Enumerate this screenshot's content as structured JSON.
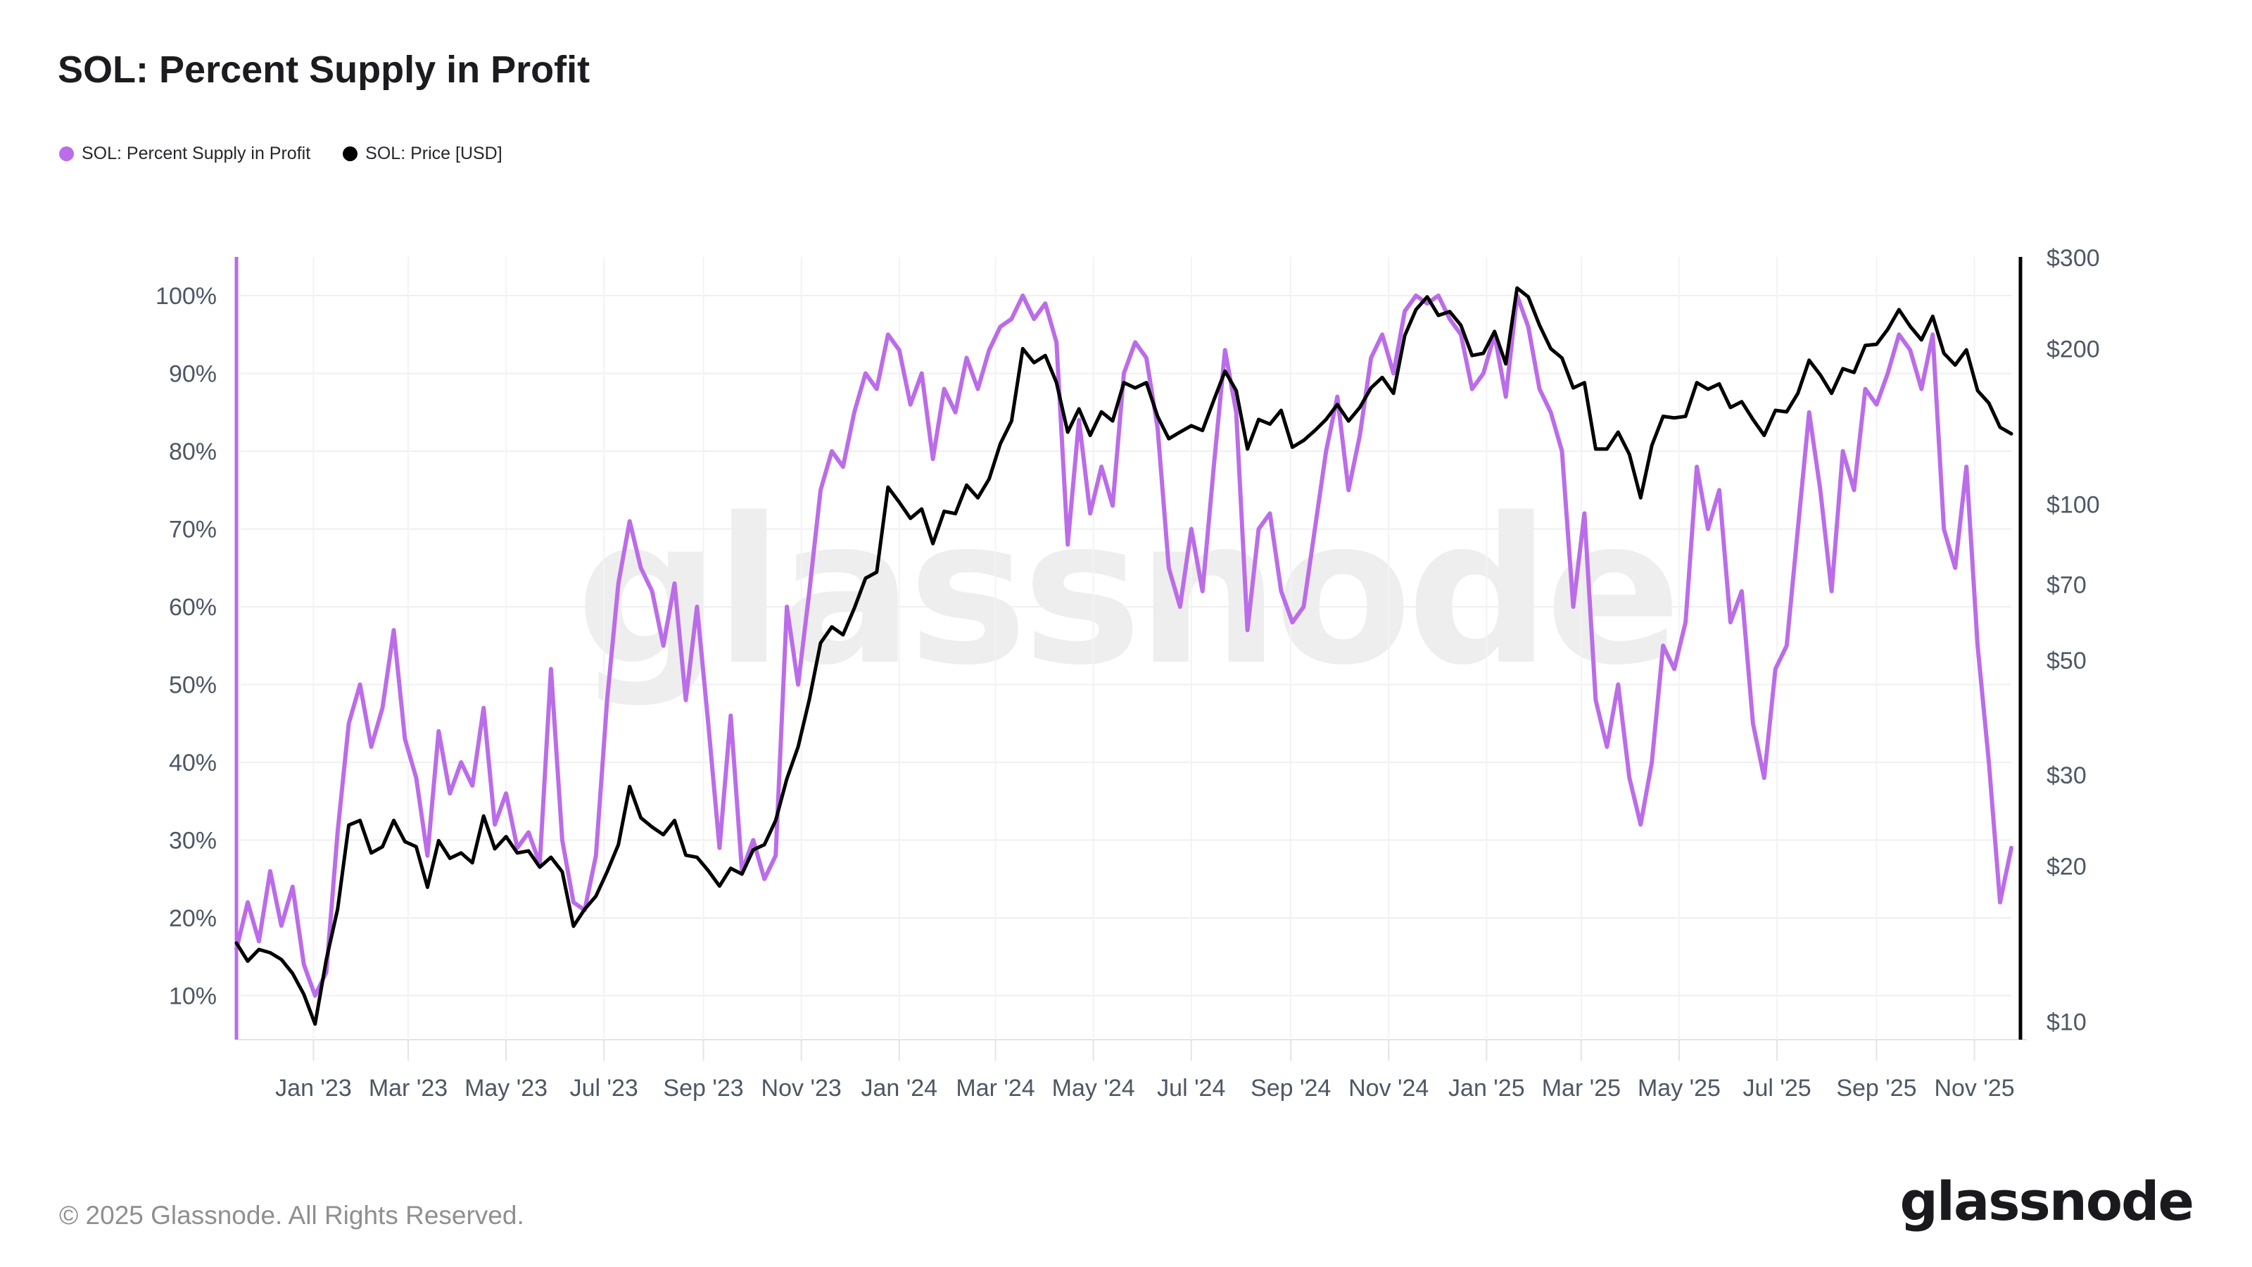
{
  "header": {
    "title": "SOL: Percent Supply in Profit"
  },
  "legend": [
    {
      "label": "SOL: Percent Supply in Profit",
      "color": "#bb6ce9",
      "marker": "circle-icon"
    },
    {
      "label": "SOL: Price [USD]",
      "color": "#000000",
      "marker": "circle-icon"
    }
  ],
  "watermark": "glassnode",
  "footer": {
    "copyright": "© 2025 Glassnode. All Rights Reserved.",
    "brand": "glassnode"
  },
  "chart_data": {
    "type": "line",
    "title": "SOL: Percent Supply in Profit",
    "grid": true,
    "legend_position": "top-left",
    "x_tick_labels": [
      "Jan '23",
      "Mar '23",
      "May '23",
      "Jul '23",
      "Sep '23",
      "Nov '23",
      "Jan '24",
      "Mar '24",
      "May '24",
      "Jul '24",
      "Sep '24",
      "Nov '24",
      "Jan '25",
      "Mar '25",
      "May '25",
      "Jul '25",
      "Sep '25",
      "Nov '25"
    ],
    "x_tick_day_offsets": [
      48,
      107,
      168,
      229,
      291,
      352,
      413,
      473,
      534,
      595,
      657,
      718,
      779,
      838,
      899,
      960,
      1022,
      1083
    ],
    "x_total_days": 1106,
    "sample_interval_days": 7,
    "left_axis": {
      "unit": "%",
      "scale": "linear",
      "tick_values": [
        100,
        90,
        80,
        70,
        60,
        50,
        40,
        30,
        20,
        10
      ],
      "tick_labels": [
        "100%",
        "90%",
        "80%",
        "70%",
        "60%",
        "50%",
        "40%",
        "30%",
        "20%",
        "10%"
      ]
    },
    "right_axis": {
      "unit": "USD",
      "scale": "log",
      "tick_values": [
        300,
        200,
        100,
        70,
        50,
        30,
        20,
        10
      ],
      "tick_labels": [
        "$300",
        "$200",
        "$100",
        "$70",
        "$50",
        "$30",
        "$20",
        "$10"
      ]
    },
    "series": [
      {
        "name": "SOL: Percent Supply in Profit",
        "color": "#bb6ce9",
        "axis": "left",
        "values": [
          16,
          22,
          17,
          26,
          19,
          24,
          14,
          10,
          13,
          31,
          45,
          50,
          42,
          47,
          57,
          43,
          38,
          28,
          44,
          36,
          40,
          37,
          47,
          32,
          36,
          29,
          31,
          27,
          52,
          30,
          22,
          21,
          28,
          48,
          63,
          71,
          65,
          62,
          55,
          63,
          48,
          60,
          45,
          29,
          46,
          26,
          30,
          25,
          28,
          60,
          50,
          62,
          75,
          80,
          78,
          85,
          90,
          88,
          95,
          93,
          86,
          90,
          79,
          88,
          85,
          92,
          88,
          93,
          96,
          97,
          100,
          97,
          99,
          94,
          68,
          84,
          72,
          78,
          73,
          90,
          94,
          92,
          83,
          65,
          60,
          70,
          62,
          78,
          93,
          85,
          57,
          70,
          72,
          62,
          58,
          60,
          70,
          80,
          87,
          75,
          82,
          92,
          95,
          90,
          98,
          100,
          99,
          100,
          97,
          95,
          88,
          90,
          95,
          87,
          100,
          96,
          88,
          85,
          80,
          60,
          72,
          48,
          42,
          50,
          38,
          32,
          40,
          55,
          52,
          58,
          78,
          70,
          75,
          58,
          62,
          45,
          38,
          52,
          55,
          70,
          85,
          75,
          62,
          80,
          75,
          88,
          86,
          90,
          95,
          93,
          88,
          95,
          70,
          65,
          78,
          55,
          40,
          22,
          29
        ]
      },
      {
        "name": "SOL: Price [USD]",
        "color": "#000000",
        "axis": "right",
        "values": [
          14.2,
          13.1,
          13.8,
          13.6,
          13.2,
          12.4,
          11.3,
          9.9,
          13.2,
          16.5,
          24,
          24.5,
          21.2,
          21.8,
          24.5,
          22.3,
          21.8,
          18.2,
          22.4,
          20.7,
          21.2,
          20.3,
          25,
          21.6,
          22.8,
          21.2,
          21.4,
          19.9,
          20.8,
          19.5,
          15.3,
          16.5,
          17.5,
          19.5,
          22,
          28.5,
          24.8,
          23.8,
          23,
          24.5,
          21,
          20.8,
          19.6,
          18.3,
          19.8,
          19.3,
          21.5,
          22,
          24.5,
          29.5,
          34,
          42,
          54,
          58,
          56,
          63,
          72,
          74,
          108,
          101,
          94,
          98,
          84,
          97,
          96,
          109,
          103,
          112,
          131,
          145,
          200,
          188,
          194,
          172,
          138,
          153,
          136,
          151,
          145,
          172,
          168,
          172,
          148,
          134,
          138,
          142,
          139,
          159,
          181,
          166,
          128,
          146,
          143,
          152,
          129,
          133,
          139,
          146,
          156,
          145,
          154,
          168,
          176,
          164,
          212,
          238,
          252,
          232,
          236,
          222,
          194,
          196,
          216,
          187,
          262,
          252,
          222,
          200,
          192,
          168,
          172,
          128,
          128,
          138,
          125,
          103,
          130,
          148,
          147,
          148,
          172,
          167,
          171,
          154,
          158,
          146,
          136,
          152,
          151,
          164,
          190,
          178,
          164,
          183,
          180,
          203,
          204,
          218,
          238,
          221,
          208,
          231,
          196,
          186,
          199,
          166,
          157,
          141,
          137
        ]
      }
    ]
  }
}
